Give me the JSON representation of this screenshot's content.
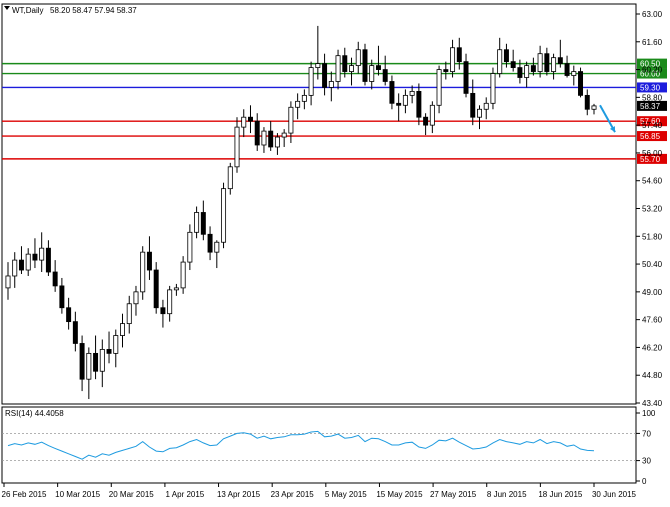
{
  "chart_data": {
    "type": "candlestick",
    "header": {
      "symbol": "WT,Daily",
      "ohlc": "58.20 58.47 57.94 58.37"
    },
    "y_ticks": [
      "63.00",
      "61.60",
      "60.20",
      "58.80",
      "57.40",
      "56.00",
      "54.60",
      "53.20",
      "51.80",
      "50.40",
      "49.00",
      "47.60",
      "46.20",
      "44.80",
      "43.40"
    ],
    "ylim": [
      43.4,
      63.0
    ],
    "x_ticks": [
      "26 Feb 2015",
      "10 Mar 2015",
      "20 Mar 2015",
      "1 Apr 2015",
      "13 Apr 2015",
      "23 Apr 2015",
      "5 May 2015",
      "15 May 2015",
      "27 May 2015",
      "8 Jun 2015",
      "18 Jun 2015",
      "30 Jun 2015"
    ],
    "levels": [
      {
        "value": 60.5,
        "label": "60.50",
        "color": "#1a8a1a"
      },
      {
        "value": 60.0,
        "label": "60.00",
        "color": "#1a8a1a"
      },
      {
        "value": 59.3,
        "label": "59.30",
        "color": "#1c1cdc"
      },
      {
        "value": 57.6,
        "label": "57.60",
        "color": "#dd0000"
      },
      {
        "value": 56.85,
        "label": "56.85",
        "color": "#dd0000"
      },
      {
        "value": 55.7,
        "label": "55.70",
        "color": "#dd0000"
      }
    ],
    "last_price": {
      "value": 58.37,
      "label": "58.37"
    },
    "candles": [
      [
        49.2,
        50.5,
        48.6,
        49.8
      ],
      [
        49.8,
        51.0,
        49.2,
        50.6
      ],
      [
        50.6,
        51.3,
        49.9,
        50.1
      ],
      [
        50.1,
        51.2,
        49.8,
        50.9
      ],
      [
        50.9,
        51.7,
        50.2,
        50.6
      ],
      [
        50.6,
        52.0,
        50.0,
        51.2
      ],
      [
        51.2,
        51.6,
        49.8,
        50.0
      ],
      [
        50.0,
        50.6,
        49.0,
        49.3
      ],
      [
        49.3,
        49.7,
        47.9,
        48.2
      ],
      [
        48.2,
        48.7,
        47.1,
        47.5
      ],
      [
        47.5,
        48.0,
        46.0,
        46.4
      ],
      [
        46.4,
        46.8,
        44.0,
        44.6
      ],
      [
        44.6,
        46.2,
        43.6,
        45.9
      ],
      [
        45.9,
        46.8,
        44.6,
        45.0
      ],
      [
        45.0,
        46.6,
        44.2,
        46.1
      ],
      [
        46.1,
        47.0,
        45.4,
        45.9
      ],
      [
        45.9,
        47.1,
        45.2,
        46.8
      ],
      [
        46.8,
        47.9,
        46.2,
        47.4
      ],
      [
        47.4,
        48.8,
        46.9,
        48.4
      ],
      [
        48.4,
        49.3,
        47.8,
        49.0
      ],
      [
        49.0,
        51.3,
        48.6,
        51.0
      ],
      [
        51.0,
        51.8,
        49.6,
        50.1
      ],
      [
        50.1,
        50.5,
        47.9,
        48.2
      ],
      [
        48.2,
        48.6,
        47.2,
        47.9
      ],
      [
        47.9,
        49.3,
        47.5,
        49.1
      ],
      [
        49.1,
        49.4,
        48.8,
        49.2
      ],
      [
        49.2,
        50.8,
        48.9,
        50.5
      ],
      [
        50.5,
        52.4,
        50.1,
        52.0
      ],
      [
        52.0,
        53.3,
        51.7,
        53.0
      ],
      [
        53.0,
        53.6,
        51.6,
        51.9
      ],
      [
        51.9,
        52.3,
        50.6,
        51.0
      ],
      [
        51.0,
        51.6,
        50.2,
        51.5
      ],
      [
        51.5,
        54.5,
        51.2,
        54.2
      ],
      [
        54.2,
        55.5,
        53.9,
        55.3
      ],
      [
        55.3,
        57.8,
        55.0,
        57.3
      ],
      [
        57.3,
        58.2,
        56.8,
        57.8
      ],
      [
        57.8,
        58.4,
        57.0,
        57.6
      ],
      [
        57.6,
        58.0,
        56.1,
        56.4
      ],
      [
        56.4,
        57.3,
        56.0,
        57.1
      ],
      [
        57.1,
        57.6,
        56.1,
        56.3
      ],
      [
        56.3,
        57.0,
        55.9,
        56.8
      ],
      [
        56.8,
        57.2,
        56.3,
        57.0
      ],
      [
        57.0,
        58.6,
        56.5,
        58.3
      ],
      [
        58.3,
        59.0,
        57.7,
        58.6
      ],
      [
        58.6,
        59.2,
        58.2,
        58.9
      ],
      [
        58.9,
        60.6,
        58.4,
        60.3
      ],
      [
        60.3,
        62.4,
        59.7,
        60.5
      ],
      [
        60.5,
        61.0,
        58.9,
        59.3
      ],
      [
        59.3,
        60.1,
        58.6,
        59.6
      ],
      [
        59.6,
        61.2,
        59.2,
        60.9
      ],
      [
        60.9,
        61.3,
        59.8,
        60.1
      ],
      [
        60.1,
        60.8,
        59.4,
        60.4
      ],
      [
        60.4,
        61.6,
        60.0,
        61.2
      ],
      [
        61.2,
        61.5,
        59.4,
        59.6
      ],
      [
        59.6,
        60.7,
        59.2,
        60.4
      ],
      [
        60.4,
        61.4,
        59.9,
        60.2
      ],
      [
        60.2,
        60.9,
        59.4,
        59.6
      ],
      [
        59.6,
        59.9,
        58.2,
        58.5
      ],
      [
        58.5,
        59.0,
        57.6,
        58.4
      ],
      [
        58.4,
        59.2,
        58.0,
        58.9
      ],
      [
        58.9,
        59.4,
        58.5,
        59.1
      ],
      [
        59.1,
        59.5,
        57.4,
        57.8
      ],
      [
        57.8,
        58.0,
        56.9,
        57.4
      ],
      [
        57.4,
        58.6,
        57.0,
        58.4
      ],
      [
        58.4,
        60.4,
        58.0,
        60.2
      ],
      [
        60.2,
        60.6,
        59.7,
        60.1
      ],
      [
        60.1,
        61.7,
        59.8,
        61.3
      ],
      [
        61.3,
        61.8,
        60.2,
        60.6
      ],
      [
        60.6,
        61.0,
        58.8,
        59.0
      ],
      [
        59.0,
        59.7,
        57.4,
        57.8
      ],
      [
        57.8,
        58.4,
        57.2,
        58.2
      ],
      [
        58.2,
        58.8,
        57.7,
        58.5
      ],
      [
        58.5,
        60.3,
        58.2,
        60.0
      ],
      [
        60.0,
        61.8,
        59.8,
        61.2
      ],
      [
        61.2,
        61.5,
        60.3,
        60.6
      ],
      [
        60.6,
        61.2,
        60.1,
        60.3
      ],
      [
        60.3,
        60.7,
        59.5,
        59.8
      ],
      [
        59.8,
        60.6,
        59.3,
        60.4
      ],
      [
        60.4,
        60.8,
        59.9,
        60.1
      ],
      [
        60.1,
        61.4,
        59.8,
        61.0
      ],
      [
        61.0,
        61.3,
        59.9,
        60.1
      ],
      [
        60.1,
        61.0,
        59.7,
        60.8
      ],
      [
        60.8,
        61.7,
        60.3,
        60.5
      ],
      [
        60.5,
        60.9,
        59.8,
        59.9
      ],
      [
        59.9,
        60.4,
        59.4,
        60.1
      ],
      [
        60.1,
        60.3,
        58.8,
        58.9
      ],
      [
        58.9,
        59.2,
        57.9,
        58.2
      ],
      [
        58.2,
        58.47,
        57.94,
        58.37
      ]
    ],
    "forecast_arrow": {
      "from_value": 58.4,
      "to_value": 57.05
    },
    "rsi": {
      "label": "RSI(14) 44.4058",
      "y_ticks": [
        "100",
        "70",
        "30",
        "0"
      ],
      "ylim": [
        0,
        100
      ],
      "values": [
        52,
        55,
        53,
        56,
        54,
        57,
        52,
        48,
        44,
        40,
        36,
        32,
        38,
        35,
        40,
        38,
        42,
        45,
        48,
        51,
        58,
        50,
        44,
        43,
        48,
        49,
        53,
        58,
        61,
        56,
        52,
        53,
        62,
        66,
        70,
        71,
        69,
        63,
        66,
        62,
        64,
        65,
        68,
        68,
        69,
        72,
        73,
        65,
        66,
        69,
        63,
        64,
        67,
        58,
        63,
        62,
        58,
        53,
        53,
        56,
        57,
        50,
        48,
        53,
        60,
        59,
        63,
        57,
        52,
        47,
        48,
        50,
        56,
        61,
        58,
        56,
        54,
        58,
        56,
        61,
        55,
        58,
        56,
        51,
        53,
        47,
        45,
        44.4
      ]
    }
  }
}
